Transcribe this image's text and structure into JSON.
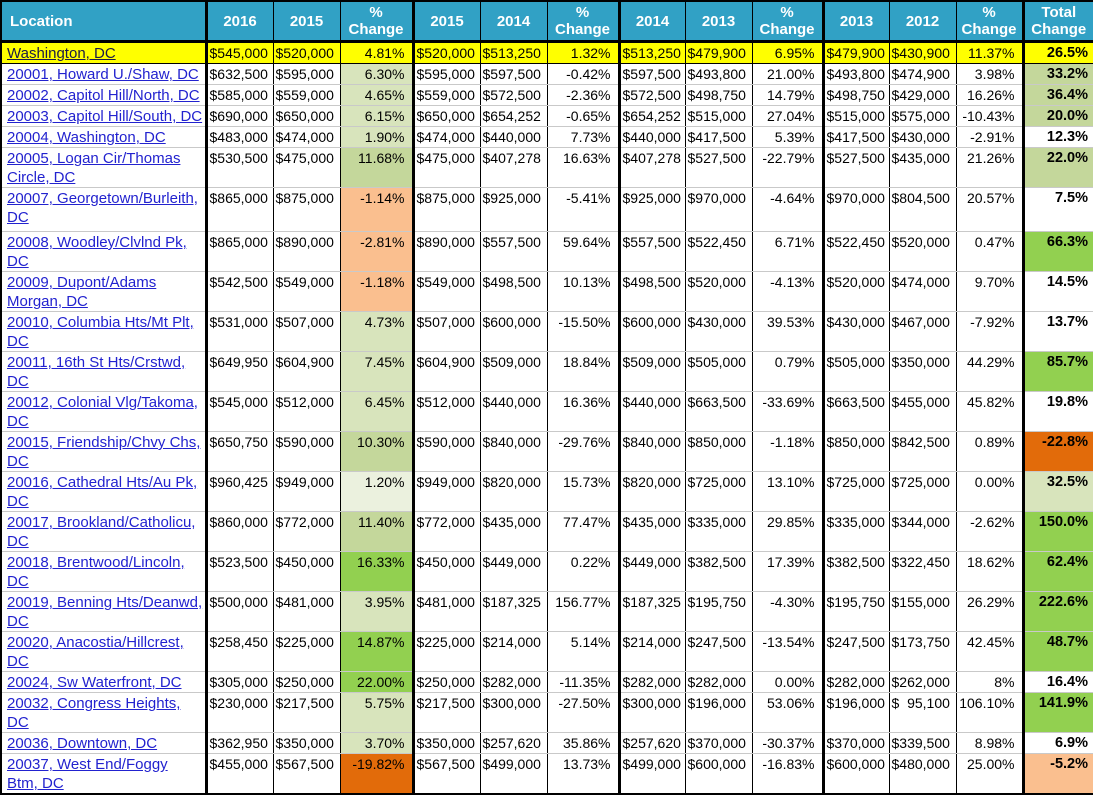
{
  "table": {
    "colors": {
      "header_bg": "#31a1c5",
      "header_text": "#ffffff",
      "link_blue": "#2222cf",
      "link_dark": "#191947",
      "yellow": "#ffff00",
      "green_pale": "#ebf1de",
      "green_light": "#d8e4bc",
      "green_mid": "#c4d79b",
      "green_bright": "#92d050",
      "orange_light": "#fabf8f",
      "orange_dark": "#e26b0a"
    },
    "columns": [
      {
        "id": "location",
        "label": "Location"
      },
      {
        "id": "y2016",
        "label": "2016"
      },
      {
        "id": "y2015a",
        "label": "2015"
      },
      {
        "id": "pch1",
        "label": "%\nChange"
      },
      {
        "id": "y2015b",
        "label": "2015"
      },
      {
        "id": "y2014a",
        "label": "2014"
      },
      {
        "id": "pch2",
        "label": "%\nChange"
      },
      {
        "id": "y2014b",
        "label": "2014"
      },
      {
        "id": "y2013a",
        "label": "2013"
      },
      {
        "id": "pch3",
        "label": "%\nChange"
      },
      {
        "id": "y2013b",
        "label": "2013"
      },
      {
        "id": "y2012",
        "label": "2012"
      },
      {
        "id": "pch4",
        "label": "%\nChange"
      },
      {
        "id": "total",
        "label": "Total\nChange"
      }
    ],
    "rows": [
      {
        "location": "Washington, DC",
        "link": "dark",
        "row_bg": "yellow",
        "pc1_bg": null,
        "total_bg": null,
        "height_class": "bb-dark",
        "cells": [
          "$545,000",
          "$520,000",
          "4.81%",
          "$520,000",
          "$513,250",
          "1.32%",
          "$513,250",
          "$479,900",
          "6.95%",
          "$479,900",
          "$430,900",
          "11.37%",
          "26.5%"
        ]
      },
      {
        "location": "20001, Howard U./Shaw, DC",
        "link": "blue",
        "row_bg": null,
        "pc1_bg": "green_light",
        "total_bg": "green_mid",
        "height_class": "",
        "cells": [
          "$632,500",
          "$595,000",
          "6.30%",
          "$595,000",
          "$597,500",
          "-0.42%",
          "$597,500",
          "$493,800",
          "21.00%",
          "$493,800",
          "$474,900",
          "3.98%",
          "33.2%"
        ]
      },
      {
        "location": "20002, Capitol Hill/North, DC",
        "link": "blue",
        "row_bg": null,
        "pc1_bg": "green_light",
        "total_bg": "green_mid",
        "height_class": "",
        "cells": [
          "$585,000",
          "$559,000",
          "4.65%",
          "$559,000",
          "$572,500",
          "-2.36%",
          "$572,500",
          "$498,750",
          "14.79%",
          "$498,750",
          "$429,000",
          "16.26%",
          "36.4%"
        ]
      },
      {
        "location": "20003, Capitol Hill/South, DC",
        "link": "blue",
        "row_bg": null,
        "pc1_bg": "green_light",
        "total_bg": "green_mid",
        "height_class": "",
        "cells": [
          "$690,000",
          "$650,000",
          "6.15%",
          "$650,000",
          "$654,252",
          "-0.65%",
          "$654,252",
          "$515,000",
          "27.04%",
          "$515,000",
          "$575,000",
          "-10.43%",
          "20.0%"
        ]
      },
      {
        "location": "20004, Washington, DC",
        "link": "blue",
        "row_bg": null,
        "pc1_bg": "green_light",
        "total_bg": null,
        "height_class": "",
        "cells": [
          "$483,000",
          "$474,000",
          "1.90%",
          "$474,000",
          "$440,000",
          "7.73%",
          "$440,000",
          "$417,500",
          "5.39%",
          "$417,500",
          "$430,000",
          "-2.91%",
          "12.3%"
        ]
      },
      {
        "location": "20005, Logan Cir/Thomas Circle, DC",
        "link": "blue",
        "row_bg": null,
        "pc1_bg": "green_mid",
        "total_bg": "green_mid",
        "height_class": "h40",
        "cells": [
          "$530,500",
          "$475,000",
          "11.68%",
          "$475,000",
          "$407,278",
          "16.63%",
          "$407,278",
          "$527,500",
          "-22.79%",
          "$527,500",
          "$435,000",
          "21.26%",
          "22.0%"
        ]
      },
      {
        "location": "20007, Georgetown/Burleith, DC",
        "link": "blue",
        "row_bg": null,
        "pc1_bg": "orange_light",
        "total_bg": null,
        "height_class": "h44",
        "cells": [
          "$865,000",
          "$875,000",
          "-1.14%",
          "$875,000",
          "$925,000",
          "-5.41%",
          "$925,000",
          "$970,000",
          "-4.64%",
          "$970,000",
          "$804,500",
          "20.57%",
          "7.5%"
        ]
      },
      {
        "location": "20008, Woodley/Clvlnd Pk, DC",
        "link": "blue",
        "row_bg": null,
        "pc1_bg": "orange_light",
        "total_bg": "green_bright",
        "height_class": "",
        "cells": [
          "$865,000",
          "$890,000",
          "-2.81%",
          "$890,000",
          "$557,500",
          "59.64%",
          "$557,500",
          "$522,450",
          "6.71%",
          "$522,450",
          "$520,000",
          "0.47%",
          "66.3%"
        ]
      },
      {
        "location": "20009, Dupont/Adams Morgan, DC",
        "link": "blue",
        "row_bg": null,
        "pc1_bg": "orange_light",
        "total_bg": null,
        "height_class": "h40",
        "cells": [
          "$542,500",
          "$549,000",
          "-1.18%",
          "$549,000",
          "$498,500",
          "10.13%",
          "$498,500",
          "$520,000",
          "-4.13%",
          "$520,000",
          "$474,000",
          "9.70%",
          "14.5%"
        ]
      },
      {
        "location": "20010, Columbia Hts/Mt Plt, DC",
        "link": "blue",
        "row_bg": null,
        "pc1_bg": "green_light",
        "total_bg": null,
        "height_class": "",
        "cells": [
          "$531,000",
          "$507,000",
          "4.73%",
          "$507,000",
          "$600,000",
          "-15.50%",
          "$600,000",
          "$430,000",
          "39.53%",
          "$430,000",
          "$467,000",
          "-7.92%",
          "13.7%"
        ]
      },
      {
        "location": "20011, 16th St Hts/Crstwd, DC",
        "link": "blue",
        "row_bg": null,
        "pc1_bg": "green_light",
        "total_bg": "green_bright",
        "height_class": "",
        "cells": [
          "$649,950",
          "$604,900",
          "7.45%",
          "$604,900",
          "$509,000",
          "18.84%",
          "$509,000",
          "$505,000",
          "0.79%",
          "$505,000",
          "$350,000",
          "44.29%",
          "85.7%"
        ]
      },
      {
        "location": "20012, Colonial Vlg/Takoma, DC",
        "link": "blue",
        "row_bg": null,
        "pc1_bg": "green_light",
        "total_bg": null,
        "height_class": "",
        "cells": [
          "$545,000",
          "$512,000",
          "6.45%",
          "$512,000",
          "$440,000",
          "16.36%",
          "$440,000",
          "$663,500",
          "-33.69%",
          "$663,500",
          "$455,000",
          "45.82%",
          "19.8%"
        ]
      },
      {
        "location": "20015, Friendship/Chvy Chs, DC",
        "link": "blue",
        "row_bg": null,
        "pc1_bg": "green_mid",
        "total_bg": "orange_dark",
        "height_class": "",
        "cells": [
          "$650,750",
          "$590,000",
          "10.30%",
          "$590,000",
          "$840,000",
          "-29.76%",
          "$840,000",
          "$850,000",
          "-1.18%",
          "$850,000",
          "$842,500",
          "0.89%",
          "-22.8%"
        ]
      },
      {
        "location": "20016, Cathedral Hts/Au Pk, DC",
        "link": "blue",
        "row_bg": null,
        "pc1_bg": "green_pale",
        "total_bg": "green_light",
        "height_class": "",
        "cells": [
          "$960,425",
          "$949,000",
          "1.20%",
          "$949,000",
          "$820,000",
          "15.73%",
          "$820,000",
          "$725,000",
          "13.10%",
          "$725,000",
          "$725,000",
          "0.00%",
          "32.5%"
        ]
      },
      {
        "location": "20017, Brookland/Catholicu, DC",
        "link": "blue",
        "row_bg": null,
        "pc1_bg": "green_mid",
        "total_bg": "green_bright",
        "height_class": "",
        "cells": [
          "$860,000",
          "$772,000",
          "11.40%",
          "$772,000",
          "$435,000",
          "77.47%",
          "$435,000",
          "$335,000",
          "29.85%",
          "$335,000",
          "$344,000",
          "-2.62%",
          "150.0%"
        ]
      },
      {
        "location": "20018, Brentwood/Lincoln, DC",
        "link": "blue",
        "row_bg": null,
        "pc1_bg": "green_bright",
        "total_bg": "green_bright",
        "height_class": "",
        "cells": [
          "$523,500",
          "$450,000",
          "16.33%",
          "$450,000",
          "$449,000",
          "0.22%",
          "$449,000",
          "$382,500",
          "17.39%",
          "$382,500",
          "$322,450",
          "18.62%",
          "62.4%"
        ]
      },
      {
        "location": "20019, Benning Hts/Deanwd, DC",
        "link": "blue",
        "row_bg": null,
        "pc1_bg": "green_light",
        "total_bg": "green_bright",
        "height_class": "h38",
        "cells": [
          "$500,000",
          "$481,000",
          "3.95%",
          "$481,000",
          "$187,325",
          "156.77%",
          "$187,325",
          "$195,750",
          "-4.30%",
          "$195,750",
          "$155,000",
          "26.29%",
          "222.6%"
        ]
      },
      {
        "location": "20020, Anacostia/Hillcrest, DC",
        "link": "blue",
        "row_bg": null,
        "pc1_bg": "green_bright",
        "total_bg": "green_bright",
        "height_class": "",
        "cells": [
          "$258,450",
          "$225,000",
          "14.87%",
          "$225,000",
          "$214,000",
          "5.14%",
          "$214,000",
          "$247,500",
          "-13.54%",
          "$247,500",
          "$173,750",
          "42.45%",
          "48.7%"
        ]
      },
      {
        "location": "20024, Sw Waterfront, DC",
        "link": "blue",
        "row_bg": null,
        "pc1_bg": "green_bright",
        "total_bg": null,
        "height_class": "",
        "cells": [
          "$305,000",
          "$250,000",
          "22.00%",
          "$250,000",
          "$282,000",
          "-11.35%",
          "$282,000",
          "$282,000",
          "0.00%",
          "$282,000",
          "$262,000",
          "8%",
          "16.4%"
        ]
      },
      {
        "location": "20032, Congress Heights, DC",
        "link": "blue",
        "row_bg": null,
        "pc1_bg": "green_light",
        "total_bg": "green_bright",
        "height_class": "",
        "cells": [
          "$230,000",
          "$217,500",
          "5.75%",
          "$217,500",
          "$300,000",
          "-27.50%",
          "$300,000",
          "$196,000",
          "53.06%",
          "$196,000",
          "$  95,100",
          "106.10%",
          "141.9%"
        ]
      },
      {
        "location": "20036, Downtown, DC",
        "link": "blue",
        "row_bg": null,
        "pc1_bg": "green_light",
        "total_bg": null,
        "height_class": "",
        "cells": [
          "$362,950",
          "$350,000",
          "3.70%",
          "$350,000",
          "$257,620",
          "35.86%",
          "$257,620",
          "$370,000",
          "-30.37%",
          "$370,000",
          "$339,500",
          "8.98%",
          "6.9%"
        ]
      },
      {
        "location": "20037, West End/Foggy Btm, DC",
        "link": "blue",
        "row_bg": null,
        "pc1_bg": "orange_dark",
        "total_bg": "orange_light",
        "height_class": "",
        "cells": [
          "$455,000",
          "$567,500",
          "-19.82%",
          "$567,500",
          "$499,000",
          "13.73%",
          "$499,000",
          "$600,000",
          "-16.83%",
          "$600,000",
          "$480,000",
          "25.00%",
          "-5.2%"
        ]
      }
    ]
  }
}
